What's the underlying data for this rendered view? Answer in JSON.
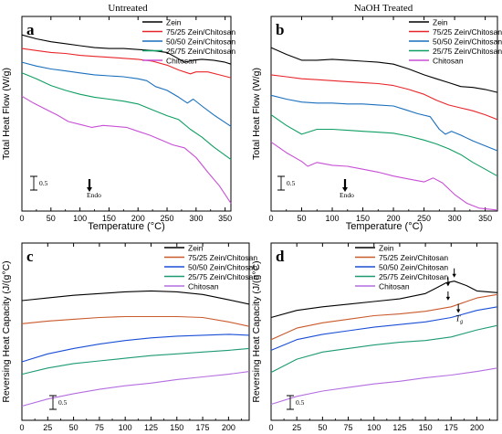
{
  "figure": {
    "column_titles": [
      "Untreated",
      "NaOH Treated"
    ]
  },
  "chart_data": [
    {
      "panel": "a",
      "type": "line",
      "title": "Untreated",
      "xlabel": "Temperature (°C)",
      "ylabel": "Total Heat Flow (W/g)",
      "xlim": [
        0,
        360
      ],
      "xticks": [
        "0",
        "50",
        "100",
        "150",
        "200",
        "250",
        "300",
        "350"
      ],
      "ylim": [
        0,
        10
      ],
      "scale_bar": "0.5",
      "annotations": [
        "Endo"
      ],
      "legend": "top-right",
      "series": [
        {
          "name": "Zein",
          "color": "#000000",
          "x": [
            0,
            25,
            50,
            75,
            100,
            125,
            150,
            175,
            200,
            225,
            250,
            265,
            280,
            295,
            310,
            330,
            350,
            360
          ],
          "y": [
            9.05,
            8.85,
            8.7,
            8.6,
            8.5,
            8.4,
            8.35,
            8.35,
            8.3,
            8.25,
            8.15,
            7.9,
            7.65,
            7.75,
            7.8,
            7.75,
            7.65,
            7.55
          ]
        },
        {
          "name": "75/25 Zein/Chitosan",
          "color": "#e8252a",
          "x": [
            0,
            25,
            50,
            75,
            100,
            125,
            150,
            175,
            200,
            225,
            250,
            270,
            290,
            300,
            320,
            340,
            360
          ],
          "y": [
            8.35,
            8.25,
            8.15,
            8.1,
            8.0,
            7.95,
            7.9,
            7.85,
            7.8,
            7.7,
            7.5,
            7.25,
            7.05,
            7.15,
            7.15,
            7.0,
            6.85
          ]
        },
        {
          "name": "50/50 Zein/Chitosan",
          "color": "#1a6fbe",
          "x": [
            0,
            25,
            50,
            75,
            100,
            125,
            150,
            175,
            200,
            215,
            230,
            250,
            270,
            285,
            295,
            310,
            330,
            360
          ],
          "y": [
            7.65,
            7.45,
            7.3,
            7.2,
            7.1,
            7.0,
            6.95,
            6.9,
            6.8,
            6.7,
            6.4,
            6.2,
            5.85,
            5.55,
            5.75,
            5.4,
            4.95,
            4.35
          ]
        },
        {
          "name": "25/75 Zein/Chitosan",
          "color": "#0f9e63",
          "x": [
            0,
            25,
            50,
            75,
            100,
            125,
            150,
            175,
            200,
            225,
            250,
            270,
            290,
            310,
            330,
            360
          ],
          "y": [
            7.1,
            6.8,
            6.45,
            6.2,
            6.0,
            5.85,
            5.75,
            5.65,
            5.5,
            5.2,
            4.9,
            4.7,
            4.2,
            3.8,
            3.3,
            2.65
          ]
        },
        {
          "name": "Chitosan",
          "color": "#c84fd6",
          "x": [
            0,
            20,
            40,
            60,
            80,
            100,
            120,
            140,
            160,
            180,
            200,
            220,
            240,
            260,
            280,
            300,
            320,
            340,
            360
          ],
          "y": [
            5.9,
            5.55,
            5.25,
            4.95,
            4.6,
            4.45,
            4.3,
            4.4,
            4.35,
            4.3,
            4.1,
            3.9,
            3.65,
            3.4,
            3.25,
            2.75,
            2.0,
            1.3,
            0.4
          ]
        }
      ]
    },
    {
      "panel": "b",
      "type": "line",
      "title": "NaOH Treated",
      "xlabel": "Temperature (°C)",
      "ylabel": "Total Heat Flow (W/g)",
      "xlim": [
        0,
        370
      ],
      "xticks": [
        "0",
        "50",
        "100",
        "150",
        "200",
        "250",
        "300",
        "350"
      ],
      "ylim": [
        0,
        10
      ],
      "scale_bar": "0.5",
      "annotations": [
        "Endo"
      ],
      "legend": "top-right",
      "series": [
        {
          "name": "Zein",
          "color": "#000000",
          "x": [
            0,
            25,
            50,
            75,
            100,
            125,
            150,
            175,
            200,
            225,
            250,
            270,
            290,
            310,
            330,
            350,
            370
          ],
          "y": [
            8.4,
            8.05,
            7.75,
            7.75,
            7.8,
            7.75,
            7.7,
            7.65,
            7.55,
            7.3,
            7.0,
            6.8,
            6.6,
            6.4,
            6.35,
            6.25,
            6.1
          ]
        },
        {
          "name": "75/25 Zein/Chitosan",
          "color": "#e8252a",
          "x": [
            0,
            25,
            50,
            75,
            100,
            125,
            150,
            175,
            200,
            225,
            250,
            270,
            290,
            310,
            330,
            350,
            370
          ],
          "y": [
            7.0,
            6.9,
            6.8,
            6.75,
            6.7,
            6.65,
            6.6,
            6.55,
            6.45,
            6.25,
            6.0,
            5.7,
            5.45,
            5.3,
            5.15,
            4.95,
            4.7
          ]
        },
        {
          "name": "50/50 Zein/Chitosan",
          "color": "#1a6fbe",
          "x": [
            0,
            25,
            50,
            75,
            100,
            125,
            150,
            175,
            200,
            220,
            240,
            260,
            275,
            285,
            295,
            310,
            330,
            350,
            370
          ],
          "y": [
            5.95,
            5.75,
            5.6,
            5.55,
            5.55,
            5.5,
            5.5,
            5.45,
            5.4,
            5.2,
            5.0,
            4.85,
            4.2,
            3.95,
            4.1,
            3.9,
            3.6,
            3.35,
            3.1
          ]
        },
        {
          "name": "25/75 Zein/Chitosan",
          "color": "#0f9e63",
          "x": [
            0,
            25,
            50,
            75,
            100,
            125,
            150,
            175,
            200,
            225,
            250,
            270,
            290,
            310,
            330,
            350,
            370
          ],
          "y": [
            4.95,
            4.4,
            3.95,
            4.2,
            4.2,
            4.15,
            4.1,
            4.05,
            4.0,
            3.85,
            3.65,
            3.45,
            3.2,
            2.9,
            2.5,
            2.15,
            1.8
          ]
        },
        {
          "name": "Chitosan",
          "color": "#c84fd6",
          "x": [
            0,
            25,
            50,
            60,
            75,
            100,
            125,
            150,
            175,
            200,
            225,
            250,
            265,
            280,
            300,
            320,
            340,
            370
          ],
          "y": [
            3.55,
            3.0,
            2.55,
            2.3,
            2.5,
            2.35,
            2.3,
            2.15,
            2.0,
            1.8,
            1.65,
            1.5,
            1.7,
            1.45,
            0.85,
            0.4,
            0.15,
            0.05
          ]
        }
      ]
    },
    {
      "panel": "c",
      "type": "line",
      "xlabel": "",
      "ylabel": "Reversing Heat Capacity (J/(g°C)",
      "xlim": [
        0,
        220
      ],
      "xticks": [
        "0",
        "25",
        "50",
        "75",
        "100",
        "125",
        "150",
        "175",
        "200"
      ],
      "ylim": [
        0,
        10
      ],
      "scale_bar": "0.5",
      "legend": "top-right",
      "series": [
        {
          "name": "Zein",
          "color": "#000000",
          "x": [
            0,
            25,
            50,
            75,
            100,
            125,
            150,
            175,
            200,
            220
          ],
          "y": [
            6.75,
            6.9,
            7.05,
            7.15,
            7.25,
            7.3,
            7.25,
            7.1,
            6.8,
            6.55
          ]
        },
        {
          "name": "75/25 Zein/Chitosan",
          "color": "#c95a2c",
          "x": [
            0,
            25,
            50,
            75,
            100,
            125,
            150,
            175,
            200,
            220
          ],
          "y": [
            5.45,
            5.6,
            5.7,
            5.8,
            5.85,
            5.85,
            5.85,
            5.8,
            5.55,
            5.3
          ]
        },
        {
          "name": "50/50 Zein/Chitosan",
          "color": "#1a4fd6",
          "x": [
            0,
            25,
            50,
            75,
            100,
            125,
            150,
            175,
            200,
            220
          ],
          "y": [
            3.3,
            3.75,
            4.05,
            4.3,
            4.5,
            4.65,
            4.75,
            4.8,
            4.85,
            4.8
          ]
        },
        {
          "name": "25/75 Zein/Chitosan",
          "color": "#1d9a74",
          "x": [
            0,
            25,
            50,
            75,
            100,
            125,
            150,
            175,
            200,
            220
          ],
          "y": [
            2.6,
            2.95,
            3.2,
            3.35,
            3.5,
            3.65,
            3.75,
            3.85,
            3.95,
            4.05
          ]
        },
        {
          "name": "Chitosan",
          "color": "#b46ee0",
          "x": [
            0,
            25,
            50,
            75,
            100,
            125,
            150,
            175,
            200,
            220
          ],
          "y": [
            0.8,
            1.2,
            1.5,
            1.75,
            1.95,
            2.1,
            2.3,
            2.45,
            2.6,
            2.75
          ]
        }
      ]
    },
    {
      "panel": "d",
      "type": "line",
      "xlabel": "",
      "ylabel": "Reversing Heat Capacity (J/(g°C)",
      "xlim": [
        0,
        220
      ],
      "xticks": [
        "0",
        "25",
        "50",
        "75",
        "100",
        "125",
        "150",
        "175",
        "200"
      ],
      "ylim": [
        0,
        10
      ],
      "scale_bar": "0.5",
      "annotations": [
        "T",
        "g"
      ],
      "legend": "top-left",
      "series": [
        {
          "name": "Zein",
          "color": "#000000",
          "x": [
            0,
            25,
            50,
            75,
            100,
            125,
            150,
            160,
            170,
            178,
            190,
            200,
            220
          ],
          "y": [
            5.8,
            6.2,
            6.4,
            6.55,
            6.7,
            6.85,
            7.15,
            7.45,
            7.75,
            7.85,
            7.6,
            7.3,
            7.2
          ]
        },
        {
          "name": "75/25 Zein/Chitosan",
          "color": "#c95a2c",
          "x": [
            0,
            25,
            50,
            75,
            100,
            125,
            150,
            175,
            200,
            220
          ],
          "y": [
            4.55,
            5.2,
            5.5,
            5.7,
            5.9,
            6.0,
            6.15,
            6.4,
            6.9,
            7.1
          ]
        },
        {
          "name": "50/50 Zein/Chitosan",
          "color": "#1a4fd6",
          "x": [
            0,
            25,
            50,
            75,
            100,
            125,
            150,
            175,
            200,
            220
          ],
          "y": [
            3.95,
            4.55,
            4.85,
            5.05,
            5.25,
            5.4,
            5.55,
            5.8,
            6.2,
            6.4
          ]
        },
        {
          "name": "25/75 Zein/Chitosan",
          "color": "#1d9a74",
          "x": [
            0,
            25,
            50,
            75,
            100,
            125,
            150,
            175,
            200,
            220
          ],
          "y": [
            2.7,
            3.45,
            3.85,
            4.05,
            4.25,
            4.4,
            4.5,
            4.7,
            5.1,
            5.35
          ]
        },
        {
          "name": "Chitosan",
          "color": "#b46ee0",
          "x": [
            0,
            25,
            50,
            75,
            100,
            125,
            150,
            175,
            200,
            220
          ],
          "y": [
            0.9,
            1.35,
            1.65,
            1.85,
            2.05,
            2.2,
            2.4,
            2.55,
            2.75,
            2.95
          ]
        }
      ]
    }
  ]
}
